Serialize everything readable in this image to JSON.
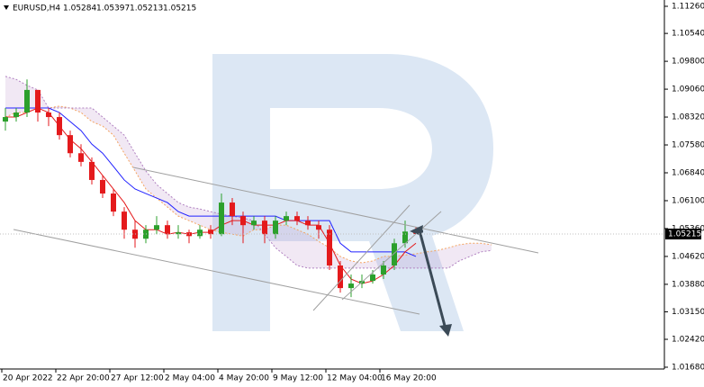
{
  "chart_data": {
    "type": "candlestick",
    "symbol": "EURUSD,H4",
    "open": [
      1.082,
      1.0832,
      1.0844,
      1.0904,
      1.0844,
      1.0832,
      1.0784,
      1.0736,
      1.0713,
      1.0665,
      1.0629,
      1.0581,
      1.0533,
      1.0509,
      1.0533,
      1.0545,
      1.0521,
      1.0526,
      1.0516,
      1.0533,
      1.0521,
      1.0605,
      1.0569,
      1.0545,
      1.0557,
      1.0521,
      1.0557,
      1.0569,
      1.0557,
      1.0545,
      1.0533,
      1.0438,
      1.0378,
      1.039,
      1.0397,
      1.0414,
      1.0438,
      1.0497,
      1.05284
    ],
    "high": [
      1.0856,
      1.0856,
      1.0932,
      1.0904,
      1.0856,
      1.0844,
      1.0796,
      1.076,
      1.0725,
      1.0677,
      1.0641,
      1.0593,
      1.0557,
      1.0545,
      1.0569,
      1.0557,
      1.0545,
      1.0533,
      1.0545,
      1.0545,
      1.0629,
      1.0617,
      1.0581,
      1.0569,
      1.0569,
      1.0569,
      1.0581,
      1.0581,
      1.0569,
      1.0557,
      1.0545,
      1.045,
      1.0414,
      1.0414,
      1.0426,
      1.045,
      1.0509,
      1.0557,
      1.05397
    ],
    "low": [
      1.0796,
      1.082,
      1.0832,
      1.082,
      1.0808,
      1.0772,
      1.0725,
      1.0701,
      1.0653,
      1.0617,
      1.0569,
      1.0509,
      1.0485,
      1.0497,
      1.0521,
      1.0509,
      1.0509,
      1.0497,
      1.0509,
      1.0509,
      1.0516,
      1.0545,
      1.0497,
      1.0533,
      1.0497,
      1.0509,
      1.0545,
      1.0545,
      1.0533,
      1.0509,
      1.0426,
      1.0366,
      1.0354,
      1.0378,
      1.039,
      1.0402,
      1.0426,
      1.0485,
      1.05213
    ],
    "close": [
      1.0832,
      1.0844,
      1.0904,
      1.0844,
      1.0832,
      1.0784,
      1.0736,
      1.0713,
      1.0665,
      1.0629,
      1.0581,
      1.0533,
      1.0509,
      1.0533,
      1.0545,
      1.0521,
      1.0526,
      1.0516,
      1.0533,
      1.0521,
      1.0605,
      1.0569,
      1.0545,
      1.0557,
      1.0521,
      1.0557,
      1.0569,
      1.0557,
      1.0545,
      1.0533,
      1.0438,
      1.0378,
      1.039,
      1.0397,
      1.0414,
      1.0438,
      1.0497,
      1.0528,
      1.05215
    ],
    "up_color": "#2ca02c",
    "down_color": "#e41a1c",
    "lines": [
      {
        "color": "#2020ff",
        "values": [
          1.0856,
          1.0856,
          1.0856,
          1.0856,
          1.0856,
          1.0844,
          1.082,
          1.0796,
          1.076,
          1.0736,
          1.0701,
          1.0665,
          1.0641,
          1.0629,
          1.0617,
          1.0605,
          1.0581,
          1.0569,
          1.0569,
          1.0569,
          1.0569,
          1.0569,
          1.0569,
          1.0569,
          1.0569,
          1.0569,
          1.0557,
          1.0557,
          1.0557,
          1.0557,
          1.0557,
          1.0497,
          1.0474,
          1.0474,
          1.0474,
          1.0474,
          1.0474,
          1.0474,
          1.0462
        ]
      },
      {
        "color": "#e41a1c",
        "values": [
          1.0832,
          1.0832,
          1.0844,
          1.0856,
          1.0844,
          1.0808,
          1.0772,
          1.0748,
          1.0713,
          1.0677,
          1.0641,
          1.0605,
          1.0557,
          1.0533,
          1.0533,
          1.0521,
          1.0526,
          1.0521,
          1.0526,
          1.0526,
          1.0545,
          1.0557,
          1.0557,
          1.0545,
          1.0545,
          1.0545,
          1.0557,
          1.0557,
          1.0545,
          1.0545,
          1.0497,
          1.0438,
          1.0402,
          1.039,
          1.0397,
          1.0414,
          1.0438,
          1.0474,
          1.0497
        ]
      }
    ],
    "cloud": {
      "span_a_color": "#f4a460",
      "span_b_color": "#b080c0",
      "span_a": [
        1.0832,
        1.0844,
        1.0844,
        1.0856,
        1.0856,
        1.0861,
        1.0856,
        1.0844,
        1.082,
        1.0808,
        1.0784,
        1.0736,
        1.0689,
        1.0641,
        1.0617,
        1.0593,
        1.0569,
        1.0557,
        1.0545,
        1.0533,
        1.0526,
        1.0521,
        1.0516,
        1.0533,
        1.0533,
        1.0545,
        1.0545,
        1.0533,
        1.0521,
        1.0502,
        1.0485,
        1.0462,
        1.045,
        1.0445,
        1.045,
        1.0462,
        1.0462,
        1.0466,
        1.0469,
        1.0474,
        1.0478,
        1.0485,
        1.0493,
        1.0497,
        1.0497,
        1.0493
      ],
      "span_b": [
        1.094,
        1.0932,
        1.0916,
        1.0904,
        1.0856,
        1.0856,
        1.0856,
        1.0856,
        1.0856,
        1.0832,
        1.0808,
        1.0784,
        1.0736,
        1.0689,
        1.0653,
        1.0629,
        1.0605,
        1.0593,
        1.0588,
        1.0581,
        1.0574,
        1.0569,
        1.0564,
        1.0557,
        1.0521,
        1.0485,
        1.0462,
        1.0438,
        1.0431,
        1.0431,
        1.0431,
        1.0431,
        1.0431,
        1.0431,
        1.0431,
        1.0431,
        1.0431,
        1.0431,
        1.0431,
        1.0431,
        1.0431,
        1.0431,
        1.045,
        1.0462,
        1.0474,
        1.0478
      ]
    },
    "x_labels": [
      "20 Apr 2022",
      "22 Apr 20:00",
      "27 Apr 12:00",
      "2 May 04:00",
      "4 May 20:00",
      "9 May 12:00",
      "12 May 04:00",
      "16 May 20:00"
    ],
    "ylim": [
      1.01632,
      1.11427
    ],
    "yticks": [
      {
        "value": 1.1126,
        "label": "1.11260"
      },
      {
        "value": 1.1054,
        "label": "1.10540"
      },
      {
        "value": 1.098,
        "label": "1.09800"
      },
      {
        "value": 1.0906,
        "label": "1.09060"
      },
      {
        "value": 1.0832,
        "label": "1.08320"
      },
      {
        "value": 1.0758,
        "label": "1.07580"
      },
      {
        "value": 1.0684,
        "label": "1.06840"
      },
      {
        "value": 1.061,
        "label": "1.06100"
      },
      {
        "value": 1.0536,
        "label": "1.05360"
      },
      {
        "value": 1.0462,
        "label": "1.04620"
      },
      {
        "value": 1.0388,
        "label": "1.03880"
      },
      {
        "value": 1.0315,
        "label": "1.03150"
      },
      {
        "value": 1.0242,
        "label": "1.02420"
      },
      {
        "value": 1.0168,
        "label": "1.01680"
      }
    ]
  }
}
